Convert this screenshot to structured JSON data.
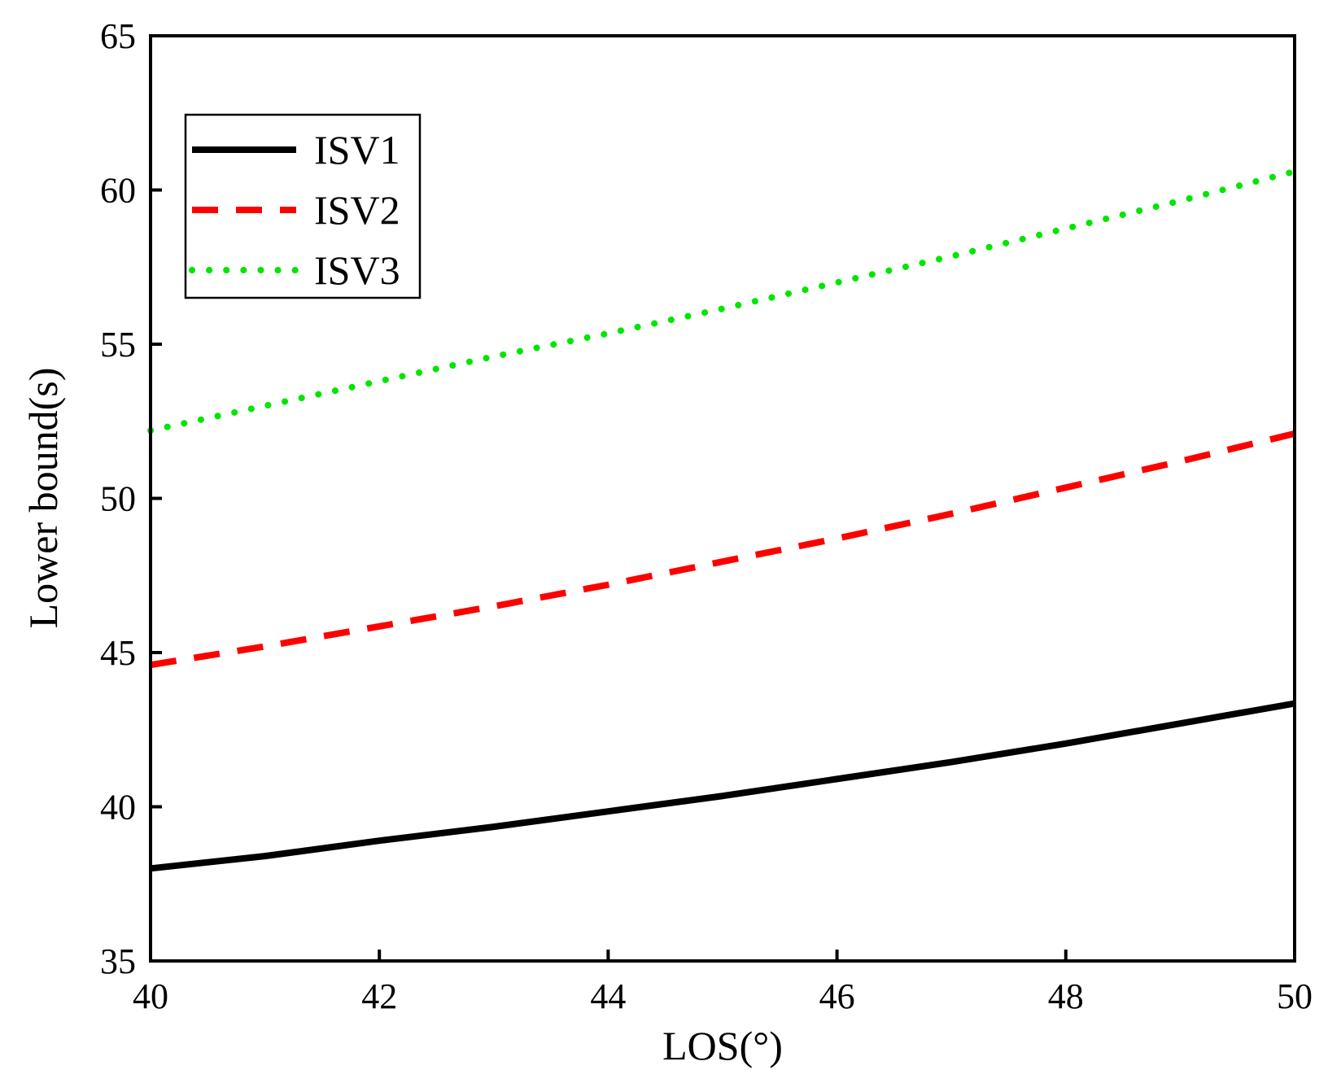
{
  "chart_data": {
    "type": "line",
    "title": "",
    "xlabel": "LOS(°)",
    "ylabel": "Lower bound(s)",
    "xlim": [
      40,
      50
    ],
    "ylim": [
      35,
      65
    ],
    "xticks": [
      40,
      42,
      44,
      46,
      48,
      50
    ],
    "yticks": [
      35,
      40,
      45,
      50,
      55,
      60,
      65
    ],
    "grid": false,
    "legend_position": "top-left",
    "x": [
      40,
      41,
      42,
      43,
      44,
      45,
      46,
      47,
      48,
      49,
      50
    ],
    "series": [
      {
        "name": "ISV1",
        "color": "#000000",
        "style": "solid",
        "values": [
          38.0,
          38.4,
          38.9,
          39.35,
          39.85,
          40.35,
          40.9,
          41.45,
          42.05,
          42.7,
          43.35
        ]
      },
      {
        "name": "ISV2",
        "color": "#ff0000",
        "style": "dashed",
        "values": [
          44.6,
          45.2,
          45.85,
          46.5,
          47.2,
          47.95,
          48.7,
          49.5,
          50.35,
          51.2,
          52.1
        ]
      },
      {
        "name": "ISV3",
        "color": "#00e600",
        "style": "dotted",
        "values": [
          52.2,
          53.0,
          53.8,
          54.6,
          55.35,
          56.15,
          57.0,
          57.85,
          58.75,
          59.65,
          60.6
        ]
      }
    ]
  }
}
